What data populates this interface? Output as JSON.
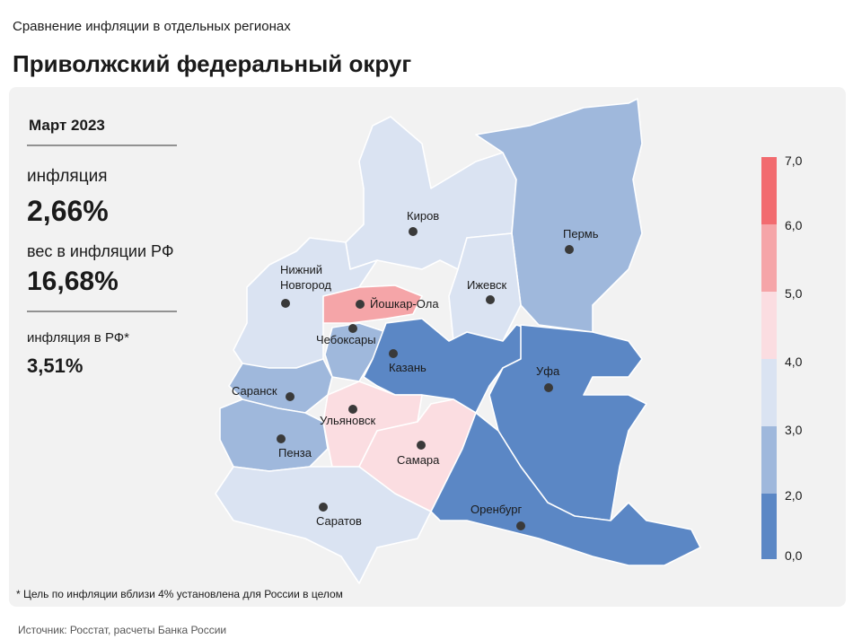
{
  "header": {
    "subtitle": "Сравнение инфляции  в отдельных регионах",
    "title": "Приволжский федеральный округ"
  },
  "summary": {
    "period": "Март 2023",
    "inflation_label": "инфляция",
    "inflation_value": "2,66%",
    "weight_label": "вес в инфляции  РФ",
    "weight_value": "16,68%",
    "rf_label": "инфляция  в РФ*",
    "rf_value": "3,51%"
  },
  "legend": {
    "ticks": [
      "7,0",
      "6,0",
      "5,0",
      "4,0",
      "3,0",
      "2,0",
      "0,0"
    ],
    "colors": [
      "#f26b6f",
      "#f5a5a8",
      "#fbdde1",
      "#dae3f2",
      "#9fb8dc",
      "#5b87c5"
    ]
  },
  "regions": [
    {
      "name": "Киров",
      "color": "#dae3f2"
    },
    {
      "name": "Пермь",
      "color": "#9fb8dc"
    },
    {
      "name": "Ижевск",
      "color": "#dae3f2"
    },
    {
      "name": [
        "Нижний",
        "Новгород"
      ],
      "color": "#dae3f2"
    },
    {
      "name": "Йошкар-Ола",
      "color": "#f5a5a8"
    },
    {
      "name": "Чебоксары",
      "color": "#9fb8dc"
    },
    {
      "name": "Казань",
      "color": "#5b87c5"
    },
    {
      "name": "Уфа",
      "color": "#5b87c5"
    },
    {
      "name": "Саранск",
      "color": "#9fb8dc"
    },
    {
      "name": "Пенза",
      "color": "#9fb8dc"
    },
    {
      "name": "Ульяновск",
      "color": "#fbdde1"
    },
    {
      "name": "Самара",
      "color": "#fbdde1"
    },
    {
      "name": "Саратов",
      "color": "#dae3f2"
    },
    {
      "name": "Оренбург",
      "color": "#5b87c5"
    }
  ],
  "footnote": "* Цель по инфляции  вблизи 4% установлена для России в целом",
  "source": "Источник: Росстат, расчеты Банка России"
}
